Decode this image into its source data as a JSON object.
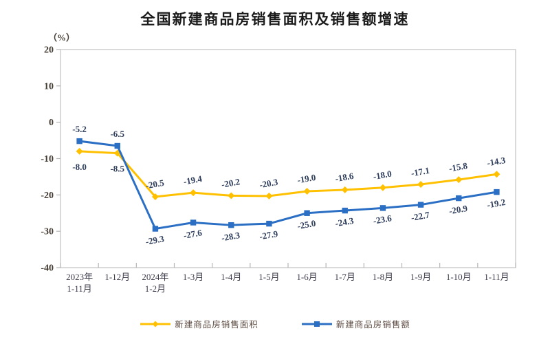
{
  "title": "全国新建商品房销售面积及销售额增速",
  "chart_data": {
    "type": "line",
    "title": "全国新建商品房销售面积及销售额增速",
    "ylabel": "（%）",
    "xlabel": "",
    "ylim": [
      -40,
      20
    ],
    "yticks": [
      20,
      10,
      0,
      -10,
      -20,
      -30,
      -40
    ],
    "grid": false,
    "legend_position": "bottom",
    "categories": [
      "2023年\n1-11月",
      "1-12月",
      "2024年\n1-2月",
      "1-3月",
      "1-4月",
      "1-5月",
      "1-6月",
      "1-7月",
      "1-8月",
      "1-9月",
      "1-10月",
      "1-11月"
    ],
    "series": [
      {
        "name": "新建商品房销售面积",
        "marker": "diamond",
        "color": "#FFC000",
        "values": [
          -8.0,
          -8.5,
          -20.5,
          -19.4,
          -20.2,
          -20.3,
          -19.0,
          -18.6,
          -18.0,
          -17.1,
          -15.8,
          -14.3
        ]
      },
      {
        "name": "新建商品房销售额",
        "marker": "square",
        "color": "#2B6FC4",
        "values": [
          -5.2,
          -6.5,
          -29.3,
          -27.6,
          -28.3,
          -27.9,
          -25.0,
          -24.3,
          -23.6,
          -22.7,
          -20.9,
          -19.2
        ]
      }
    ]
  },
  "colors": {
    "plot_border": "#c2c2c2",
    "tick": "#b5b5b5",
    "data_label": "#2f3e5c",
    "axis_label": "#453c33",
    "legend_text": "#5d4b41"
  }
}
